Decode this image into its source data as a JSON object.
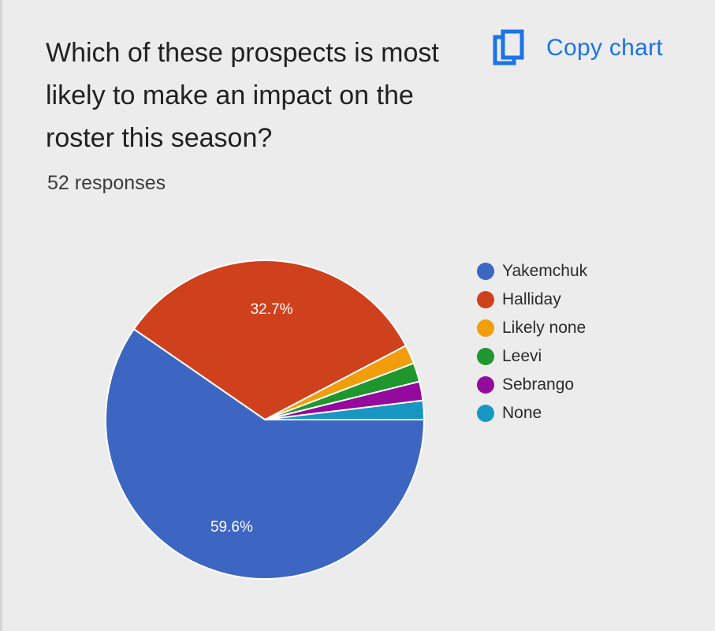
{
  "title": "Which of these prospects is most likely to make an impact on the roster this season?",
  "responses_label": "52 responses",
  "copy_button": {
    "label": "Copy chart",
    "icon": "copy-icon",
    "color": "#1a73e8"
  },
  "chart_data": {
    "type": "pie",
    "title": "Which of these prospects is most likely to make an impact on the roster this season?",
    "total_responses": 52,
    "legend_position": "right",
    "slices": [
      {
        "label": "Yakemchuk",
        "count": 31,
        "percent": 59.6,
        "percent_label": "59.6%",
        "color": "#3d66c2"
      },
      {
        "label": "Halliday",
        "count": 17,
        "percent": 32.7,
        "percent_label": "32.7%",
        "color": "#cf401d"
      },
      {
        "label": "Likely none",
        "count": 1,
        "percent": 1.9,
        "percent_label": "",
        "color": "#f29d0c"
      },
      {
        "label": "Leevi",
        "count": 1,
        "percent": 1.9,
        "percent_label": "",
        "color": "#1f962e"
      },
      {
        "label": "Sebrango",
        "count": 1,
        "percent": 1.9,
        "percent_label": "",
        "color": "#930a9c"
      },
      {
        "label": "None",
        "count": 1,
        "percent": 1.9,
        "percent_label": "",
        "color": "#1796c2"
      }
    ]
  }
}
